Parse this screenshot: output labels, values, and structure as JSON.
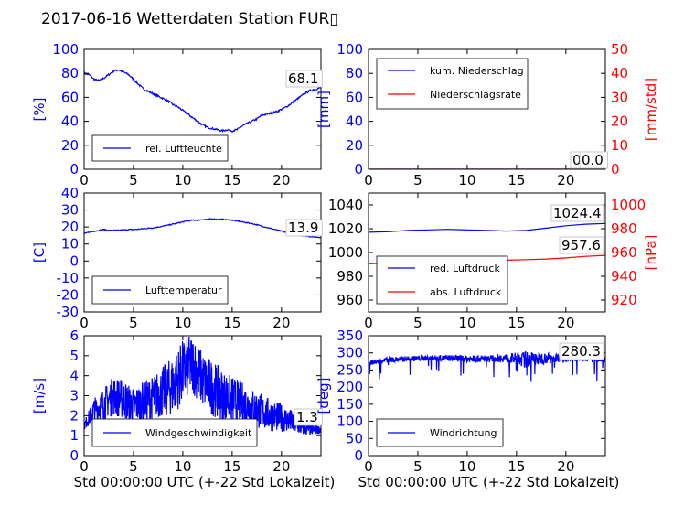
{
  "title": "2017-06-16 Wetterdaten Station FUR▯",
  "colors": {
    "left": "#0000ff",
    "right": "#ff0000",
    "axis": "#000000"
  },
  "chart_data": [
    {
      "id": "humidity",
      "type": "line",
      "ylabel": "[%]",
      "ylim": [
        0,
        100
      ],
      "yticks": [
        0,
        20,
        40,
        60,
        80,
        100
      ],
      "xlim": [
        0,
        24
      ],
      "xticks": [
        0,
        5,
        10,
        15,
        20
      ],
      "series": [
        {
          "name": "rel. Luftfeuchte",
          "color": "#0000ff",
          "x": [
            0,
            0.5,
            1,
            1.5,
            2,
            2.5,
            3,
            3.5,
            4,
            4.5,
            5,
            5.5,
            6,
            6.5,
            7,
            7.5,
            8,
            8.5,
            9,
            9.5,
            10,
            10.5,
            11,
            11.5,
            12,
            12.5,
            13,
            13.5,
            14,
            14.5,
            15,
            15.5,
            16,
            16.5,
            17,
            17.5,
            18,
            18.5,
            19,
            19.5,
            20,
            20.5,
            21,
            21.5,
            22,
            22.5,
            23,
            23.5,
            24
          ],
          "y": [
            80,
            79,
            75,
            74,
            76,
            79,
            82,
            83,
            81,
            79,
            75,
            71,
            67,
            65,
            63,
            61,
            59,
            57,
            54,
            52,
            49,
            46,
            43,
            40,
            37,
            35,
            34,
            33,
            32,
            33,
            32,
            33,
            36,
            38,
            40,
            42,
            45,
            46,
            47,
            48,
            50,
            52,
            55,
            58,
            61,
            64,
            66,
            67,
            68
          ]
        }
      ],
      "last": "68.1"
    },
    {
      "id": "rain",
      "type": "line",
      "ylabel": "[mm]",
      "ylim": [
        0,
        100
      ],
      "yticks": [
        0,
        20,
        40,
        60,
        80,
        100
      ],
      "ylabel2": "[mm/std]",
      "ylim2": [
        0,
        50
      ],
      "yticks2": [
        0,
        10,
        20,
        30,
        40,
        50
      ],
      "xlim": [
        0,
        24
      ],
      "xticks": [
        0,
        5,
        10,
        15,
        20
      ],
      "series": [
        {
          "name": "kum. Niederschlag",
          "axis": "left",
          "color": "#0000ff",
          "x": [
            0,
            24
          ],
          "y": [
            0,
            0
          ]
        },
        {
          "name": "Niederschlagsrate",
          "axis": "right",
          "color": "#ff0000",
          "x": [
            0,
            24
          ],
          "y": [
            0,
            0
          ]
        }
      ],
      "last": "0.0",
      "last2": "0.0"
    },
    {
      "id": "temperature",
      "type": "line",
      "ylabel": "[C]",
      "ylim": [
        -30,
        40
      ],
      "yticks": [
        -30,
        -20,
        -10,
        0,
        10,
        20,
        30,
        40
      ],
      "xlim": [
        0,
        24
      ],
      "xticks": [
        0,
        5,
        10,
        15,
        20
      ],
      "series": [
        {
          "name": "Lufttemperatur",
          "color": "#0000ff",
          "x": [
            0,
            0.5,
            1,
            1.5,
            2,
            2.5,
            3,
            3.5,
            4,
            4.5,
            5,
            5.5,
            6,
            6.5,
            7,
            7.5,
            8,
            8.5,
            9,
            9.5,
            10,
            10.5,
            11,
            11.5,
            12,
            12.5,
            13,
            13.5,
            14,
            14.5,
            15,
            15.5,
            16,
            16.5,
            17,
            17.5,
            18,
            18.5,
            19,
            19.5,
            20,
            20.5,
            21,
            21.5,
            22,
            22.5,
            23,
            23.5,
            24
          ],
          "y": [
            16,
            17,
            17.5,
            18,
            18.5,
            18,
            18,
            18,
            18.3,
            18.5,
            18.5,
            18.7,
            19,
            19.3,
            19.5,
            20,
            20.5,
            21,
            21.7,
            22.3,
            23,
            23.5,
            24,
            24,
            24.3,
            24.5,
            24.8,
            24.5,
            24.5,
            24.2,
            24,
            23.5,
            23,
            22.5,
            22,
            21.3,
            20.5,
            19.8,
            19,
            18.3,
            17.5,
            16.8,
            16.3,
            15.7,
            15,
            14.7,
            14.3,
            14.1,
            13.9
          ]
        }
      ],
      "last": "13.9"
    },
    {
      "id": "pressure",
      "type": "line",
      "ylim": [
        950,
        1050
      ],
      "yticks": [
        960,
        980,
        1000,
        1020,
        1040
      ],
      "ylabel2": "[hPa]",
      "ylim2": [
        910,
        1010
      ],
      "yticks2": [
        920,
        940,
        960,
        980,
        1000
      ],
      "xlim": [
        0,
        24
      ],
      "xticks": [
        0,
        5,
        10,
        15,
        20
      ],
      "series": [
        {
          "name": "red. Luftdruck",
          "axis": "left",
          "color": "#0000ff",
          "x": [
            0,
            2,
            4,
            6,
            8,
            10,
            12,
            14,
            16,
            18,
            20,
            22,
            24
          ],
          "y": [
            1017,
            1017.5,
            1018.5,
            1019,
            1019.5,
            1019,
            1018.5,
            1018,
            1018.5,
            1020.5,
            1022.5,
            1023.8,
            1024.4
          ]
        },
        {
          "name": "abs. Luftdruck",
          "axis": "right",
          "color": "#ff0000",
          "x": [
            0,
            2,
            4,
            6,
            8,
            10,
            12,
            14,
            16,
            18,
            20,
            22,
            24
          ],
          "y": [
            950.5,
            951,
            952,
            953,
            953.5,
            953.5,
            953.5,
            953.5,
            954,
            954.5,
            955.5,
            956.8,
            957.6
          ]
        }
      ],
      "last": "1024.4",
      "last2": "957.6"
    },
    {
      "id": "wind_speed",
      "type": "line",
      "ylabel": "[m/s]",
      "ylim": [
        0,
        6
      ],
      "yticks": [
        0,
        1,
        2,
        3,
        4,
        5,
        6
      ],
      "xlim": [
        0,
        24
      ],
      "xticks": [
        0,
        5,
        10,
        15,
        20
      ],
      "xlabel": "Std 00:00:00 UTC (+-22 Std Lokalzeit)",
      "series": [
        {
          "name": "Windgeschwindigkeit",
          "color": "#0000ff",
          "x": [
            0,
            1,
            2,
            3,
            4,
            5,
            6,
            7,
            8,
            9,
            10,
            11,
            12,
            13,
            14,
            15,
            16,
            17,
            18,
            19,
            20,
            21,
            22,
            23,
            24
          ],
          "y": [
            1.5,
            2.3,
            2.6,
            3.0,
            2.8,
            2.5,
            2.7,
            2.9,
            3.2,
            3.5,
            4.2,
            4.6,
            3.8,
            3.4,
            3.0,
            2.8,
            2.6,
            2.4,
            2.2,
            2.0,
            1.9,
            1.7,
            1.4,
            1.3,
            1.3
          ],
          "spread": [
            0.2,
            0.6,
            0.8,
            1.0,
            1.0,
            0.9,
            1.0,
            1.1,
            1.3,
            1.5,
            1.6,
            1.5,
            1.4,
            1.4,
            1.3,
            1.2,
            1.1,
            1.0,
            0.9,
            0.8,
            0.7,
            0.6,
            0.4,
            0.3,
            0.2
          ]
        }
      ],
      "last": "1.3"
    },
    {
      "id": "wind_dir",
      "type": "line",
      "ylabel": "[deg]",
      "ylim": [
        0,
        350
      ],
      "yticks": [
        0,
        50,
        100,
        150,
        200,
        250,
        300,
        350
      ],
      "xlim": [
        0,
        24
      ],
      "xticks": [
        0,
        5,
        10,
        15,
        20
      ],
      "xlabel": "Std 00:00:00 UTC (+-22 Std Lokalzeit)",
      "series": [
        {
          "name": "Windrichtung",
          "color": "#0000ff",
          "x": [
            0,
            2,
            4,
            6,
            8,
            10,
            12,
            14,
            16,
            18,
            20,
            22,
            24
          ],
          "y": [
            270,
            280,
            283,
            285,
            285,
            283,
            283,
            285,
            280,
            285,
            287,
            285,
            280
          ],
          "spread": [
            6,
            8,
            8,
            8,
            9,
            10,
            10,
            12,
            25,
            15,
            12,
            10,
            8
          ]
        }
      ],
      "last": "280.3"
    }
  ]
}
